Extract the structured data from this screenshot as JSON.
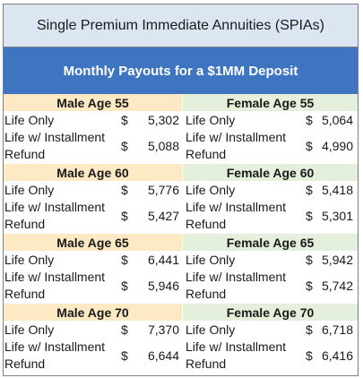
{
  "title": "Single Premium Immediate Annuities (SPIAs)",
  "subtitle": "Monthly Payouts for a $1MM Deposit",
  "currency_symbol": "$",
  "colors": {
    "title_bg": "#dce6f2",
    "subtitle_bg": "#3f75c0",
    "male_header_bg": "#fde9c4",
    "female_header_bg": "#e4efdc"
  },
  "row_labels": {
    "life_only": "Life Only",
    "installment_line1": "Life w/ Installment",
    "installment_line2": "Refund"
  },
  "blocks": [
    {
      "male_header": "Male Age 55",
      "female_header": "Female Age 55",
      "male_life_only": "5,302",
      "male_installment": "5,088",
      "female_life_only": "5,064",
      "female_installment": "4,990"
    },
    {
      "male_header": "Male Age 60",
      "female_header": "Female Age 60",
      "male_life_only": "5,776",
      "male_installment": "5,427",
      "female_life_only": "5,418",
      "female_installment": "5,301"
    },
    {
      "male_header": "Male Age 65",
      "female_header": "Female Age 65",
      "male_life_only": "6,441",
      "male_installment": "5,946",
      "female_life_only": "5,942",
      "female_installment": "5,742"
    },
    {
      "male_header": "Male Age 70",
      "female_header": "Female Age 70",
      "male_life_only": "7,370",
      "male_installment": "6,644",
      "female_life_only": "6,718",
      "female_installment": "6,416"
    }
  ]
}
